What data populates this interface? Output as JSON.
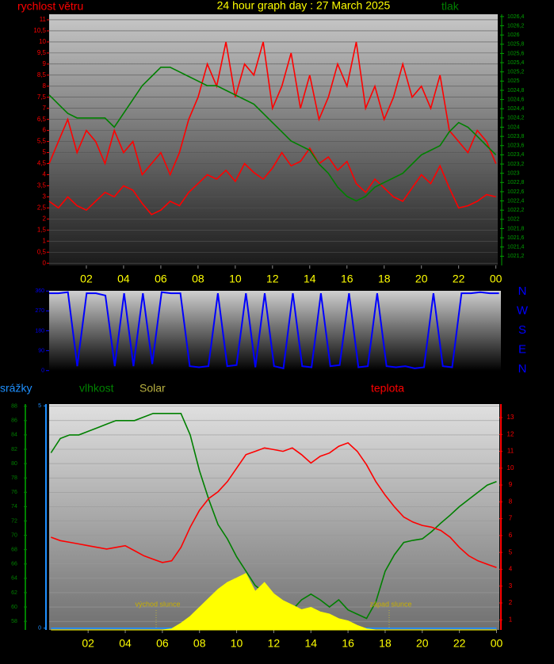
{
  "chart_data": [
    {
      "type": "line",
      "title": "24 hour graph day : 27 March 2025",
      "ylabel": "rychlost větru",
      "y2label": "tlak",
      "grid": true,
      "x": [
        0,
        0.5,
        1,
        1.5,
        2,
        2.5,
        3,
        3.5,
        4,
        4.5,
        5,
        5.5,
        6,
        6.5,
        7,
        7.5,
        8,
        8.5,
        9,
        9.5,
        10,
        10.5,
        11,
        11.5,
        12,
        12.5,
        13,
        13.5,
        14,
        14.5,
        15,
        15.5,
        16,
        16.5,
        17,
        17.5,
        18,
        18.5,
        19,
        19.5,
        20,
        20.5,
        21,
        21.5,
        22,
        22.5,
        23,
        23.5,
        24
      ],
      "series": [
        {
          "color": "#ff0000",
          "values": [
            4.5,
            5.5,
            6.5,
            5,
            6,
            5.5,
            4.5,
            6,
            5,
            5.5,
            4,
            4.5,
            5,
            4,
            5,
            6.5,
            7.5,
            9,
            8,
            10,
            7.5,
            9,
            8.5,
            10,
            7,
            8,
            9.5,
            7,
            8.5,
            6.5,
            7.5,
            9,
            8,
            10,
            7,
            8,
            6.5,
            7.5,
            9,
            7.5,
            8,
            7,
            8.5,
            6,
            5.5,
            5,
            6,
            5.5,
            4.5
          ]
        },
        {
          "color": "#ff0000",
          "values": [
            2.8,
            2.5,
            3,
            2.6,
            2.4,
            2.8,
            3.2,
            3,
            3.5,
            3.3,
            2.7,
            2.2,
            2.4,
            2.8,
            2.6,
            3.2,
            3.6,
            4,
            3.8,
            4.2,
            3.7,
            4.5,
            4.1,
            3.8,
            4.3,
            5,
            4.4,
            4.6,
            5.2,
            4.5,
            4.8,
            4.2,
            4.6,
            3.6,
            3.2,
            3.8,
            3.4,
            3,
            2.8,
            3.4,
            4,
            3.6,
            4.4,
            3.4,
            2.5,
            2.6,
            2.8,
            3.1,
            3
          ]
        },
        {
          "color": "#008000",
          "axis": "y2",
          "values": [
            1024.7,
            1024.5,
            1024.3,
            1024.2,
            1024.2,
            1024.2,
            1024.2,
            1024,
            1024.3,
            1024.6,
            1024.9,
            1025.1,
            1025.3,
            1025.3,
            1025.2,
            1025.1,
            1025,
            1024.9,
            1024.9,
            1024.8,
            1024.7,
            1024.6,
            1024.5,
            1024.3,
            1024.1,
            1023.9,
            1023.7,
            1023.6,
            1023.5,
            1023.2,
            1023,
            1022.7,
            1022.5,
            1022.4,
            1022.5,
            1022.7,
            1022.8,
            1022.9,
            1023,
            1023.2,
            1023.4,
            1023.5,
            1023.6,
            1023.9,
            1024.1,
            1024,
            1023.8,
            1023.6,
            1023.4
          ]
        }
      ],
      "xlim": [
        0,
        24.1
      ],
      "ylim": [
        -0.1,
        11.25
      ],
      "y2lim": [
        1021,
        1026.45
      ],
      "xticks": [
        {
          "value": 2,
          "label": "02"
        },
        {
          "value": 4,
          "label": "04"
        },
        {
          "value": 6,
          "label": "06"
        },
        {
          "value": 8,
          "label": "08"
        },
        10,
        12,
        14,
        16,
        18,
        20,
        22,
        {
          "value": 24,
          "label": "00"
        }
      ],
      "yticks": [
        0,
        {
          "value": 0.5,
          "label": "0,5"
        },
        1,
        {
          "value": 1.5,
          "label": "1,5"
        },
        2,
        {
          "value": 2.5,
          "label": "2,5"
        },
        3,
        {
          "value": 3.5,
          "label": "3,5"
        },
        4,
        {
          "value": 4.5,
          "label": "4,5"
        },
        5,
        {
          "value": 5.5,
          "label": "5,5"
        },
        6,
        {
          "value": 6.5,
          "label": "6,5"
        },
        7,
        {
          "value": 7.5,
          "label": "7,5"
        },
        8,
        {
          "value": 8.5,
          "label": "8,5"
        },
        9,
        {
          "value": 9.5,
          "label": "9,5"
        },
        10,
        {
          "value": 10.5,
          "label": "10,5"
        },
        11
      ],
      "y2ticks": [
        {
          "value": 1021.2,
          "label": "1021,2"
        },
        {
          "value": 1021.4,
          "label": "1021,4"
        },
        {
          "value": 1021.6,
          "label": "1021,6"
        },
        {
          "value": 1021.8,
          "label": "1021,8"
        },
        1022,
        {
          "value": 1022.2,
          "label": "1022,2"
        },
        {
          "value": 1022.4,
          "label": "1022,4"
        },
        {
          "value": 1022.6,
          "label": "1022,6"
        },
        {
          "value": 1022.8,
          "label": "1022,8"
        },
        1023,
        {
          "value": 1023.2,
          "label": "1023,2"
        },
        {
          "value": 1023.4,
          "label": "1023,4"
        },
        {
          "value": 1023.6,
          "label": "1023,6"
        },
        {
          "value": 1023.8,
          "label": "1023,8"
        },
        1024,
        {
          "value": 1024.2,
          "label": "1024,2"
        },
        {
          "value": 1024.4,
          "label": "1024,4"
        },
        {
          "value": 1024.6,
          "label": "1024,6"
        },
        {
          "value": 1024.8,
          "label": "1024,8"
        },
        1025,
        {
          "value": 1025.2,
          "label": "1025,2"
        },
        {
          "value": 1025.4,
          "label": "1025,4"
        },
        {
          "value": 1025.6,
          "label": "1025,6"
        },
        {
          "value": 1025.8,
          "label": "1025,8"
        },
        1026,
        {
          "value": 1026.2,
          "label": "1026,2"
        },
        {
          "value": 1026.4,
          "label": "1026,4"
        }
      ]
    },
    {
      "type": "line",
      "compass": [
        "N",
        "W",
        "S",
        "E",
        "N"
      ],
      "x": [
        0,
        0.5,
        1,
        1.5,
        2,
        2.5,
        3,
        3.5,
        4,
        4.5,
        5,
        5.5,
        6,
        6.5,
        7,
        7.5,
        8,
        8.5,
        9,
        9.5,
        10,
        10.5,
        11,
        11.5,
        12,
        12.5,
        13,
        13.5,
        14,
        14.5,
        15,
        15.5,
        16,
        16.5,
        17,
        17.5,
        18,
        18.5,
        19,
        19.5,
        20,
        20.5,
        21,
        21.5,
        22,
        22.5,
        23,
        23.5,
        24
      ],
      "series": [
        {
          "color": "#0000ff",
          "values": [
            350,
            350,
            355,
            20,
            350,
            350,
            340,
            20,
            350,
            20,
            350,
            30,
            355,
            350,
            350,
            20,
            15,
            20,
            350,
            20,
            25,
            350,
            15,
            350,
            20,
            10,
            350,
            20,
            15,
            350,
            20,
            25,
            350,
            15,
            20,
            350,
            20,
            15,
            20,
            10,
            15,
            350,
            20,
            15,
            350,
            350,
            355,
            350,
            350
          ]
        }
      ],
      "xlim": [
        0,
        24.1
      ],
      "ylim": [
        -1,
        361
      ],
      "yticks": [
        0,
        90,
        180,
        270,
        360
      ]
    },
    {
      "type": "line",
      "grid": true,
      "annotations": [
        "východ slunce",
        "západ slunce"
      ],
      "x": [
        0,
        0.5,
        1,
        1.5,
        2,
        2.5,
        3,
        3.5,
        4,
        4.5,
        5,
        5.5,
        6,
        6.5,
        7,
        7.5,
        8,
        8.5,
        9,
        9.5,
        10,
        10.5,
        11,
        11.5,
        12,
        12.5,
        13,
        13.5,
        14,
        14.5,
        15,
        15.5,
        16,
        16.5,
        17,
        17.5,
        18,
        18.5,
        19,
        19.5,
        20,
        20.5,
        21,
        21.5,
        22,
        22.5,
        23,
        23.5,
        24
      ],
      "series": [
        {
          "name": "srážky",
          "color": "#1e90ff",
          "axis": "y3",
          "values": [
            0,
            0,
            0,
            0,
            0,
            0,
            0,
            0,
            0,
            0,
            0,
            0,
            0,
            0,
            0,
            0,
            0,
            0,
            0,
            0,
            0,
            0,
            0,
            0,
            0,
            0,
            0,
            0,
            0,
            0,
            0,
            0,
            0,
            0,
            0,
            0,
            0,
            0,
            0,
            0,
            0,
            0,
            0,
            0,
            0,
            0,
            0,
            0,
            0
          ]
        },
        {
          "name": "vlhkost",
          "color": "#008000",
          "values": [
            81.5,
            83.5,
            84,
            84,
            84.5,
            85,
            85.5,
            86,
            86,
            86,
            86.5,
            87,
            87,
            87,
            87,
            84,
            79,
            75,
            71.5,
            69.5,
            67,
            65,
            63,
            62,
            60.7,
            60,
            59.6,
            61,
            61.8,
            61,
            60,
            61,
            59.6,
            59,
            58.4,
            60.7,
            65,
            67.3,
            69,
            69.3,
            69.5,
            70.5,
            71.7,
            72.8,
            74,
            75,
            76,
            77,
            77.5
          ]
        },
        {
          "name": "Solar",
          "color": "#ffff00",
          "label_color": "#b8b040",
          "axis": "y4",
          "area": true,
          "values": [
            0,
            0,
            0,
            0,
            0,
            0,
            0,
            0,
            0,
            0,
            0,
            0,
            0,
            5,
            30,
            60,
            100,
            140,
            180,
            210,
            230,
            250,
            170,
            210,
            160,
            130,
            110,
            90,
            100,
            80,
            70,
            50,
            40,
            20,
            5,
            0,
            0,
            0,
            0,
            0,
            0,
            0,
            0,
            0,
            0,
            0,
            0,
            0,
            0
          ]
        },
        {
          "name": "teplota",
          "color": "#ff0000",
          "axis": "y2",
          "values": [
            5.9,
            5.7,
            5.6,
            5.5,
            5.4,
            5.3,
            5.2,
            5.3,
            5.4,
            5.1,
            4.8,
            4.6,
            4.4,
            4.5,
            5.3,
            6.5,
            7.5,
            8.2,
            8.6,
            9.2,
            10,
            10.8,
            11,
            11.2,
            11.1,
            11,
            11.2,
            10.8,
            10.3,
            10.7,
            10.9,
            11.3,
            11.5,
            11,
            10.2,
            9.2,
            8.4,
            7.7,
            7.1,
            6.8,
            6.6,
            6.5,
            6.3,
            5.9,
            5.3,
            4.8,
            4.5,
            4.3,
            4.1
          ]
        }
      ],
      "xlim": [
        -0.1,
        24.15
      ],
      "ylim": [
        56.8,
        88.3
      ],
      "y2lim": [
        0.4,
        13.8
      ],
      "y3lim": [
        -0.04,
        5.04
      ],
      "y4lim": [
        0,
        1000
      ],
      "xticks": [
        {
          "value": 2,
          "label": "02"
        },
        {
          "value": 4,
          "label": "04"
        },
        {
          "value": 6,
          "label": "06"
        },
        {
          "value": 8,
          "label": "08"
        },
        10,
        12,
        14,
        16,
        18,
        20,
        22,
        {
          "value": 24,
          "label": "00"
        }
      ],
      "yticks": [
        58,
        60,
        62,
        64,
        66,
        68,
        70,
        72,
        74,
        76,
        78,
        80,
        82,
        84,
        86,
        88
      ],
      "y2ticks": [
        1,
        2,
        3,
        4,
        5,
        6,
        7,
        8,
        9,
        10,
        11,
        12,
        13
      ],
      "y3ticks": [
        0,
        5
      ]
    }
  ]
}
